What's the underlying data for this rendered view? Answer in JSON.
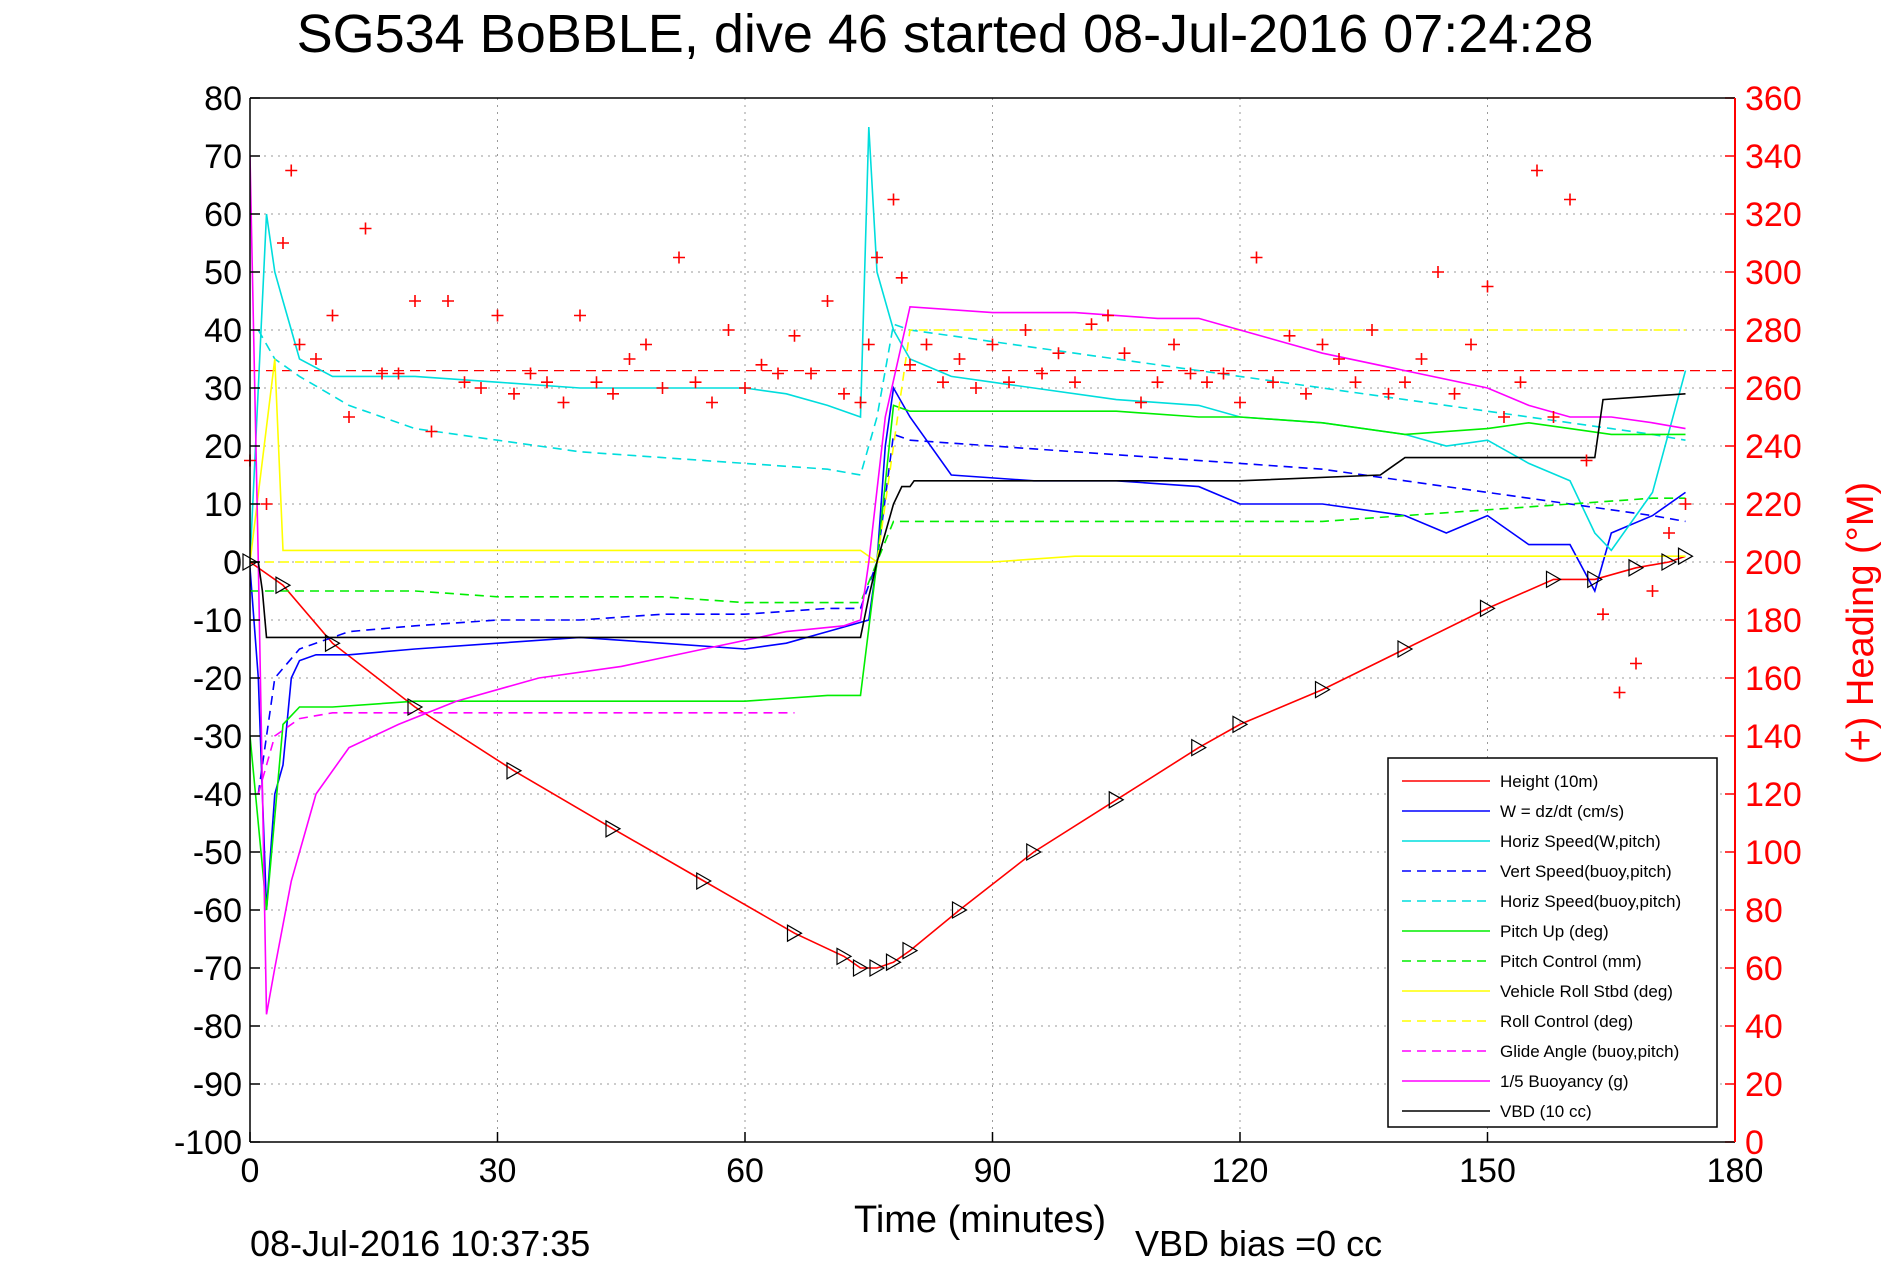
{
  "title": "SG534 BoBBLE, dive 46 started 08-Jul-2016 07:24:28",
  "footer": {
    "timestamp": "08-Jul-2016 10:37:35",
    "vbd_bias": "VBD bias =0 cc"
  },
  "chart_data": {
    "type": "line",
    "title": "SG534 BoBBLE, dive 46 started 08-Jul-2016 07:24:28",
    "xlabel": "Time (minutes)",
    "ylabel": "",
    "y2label": "(+) Heading (°M)",
    "xlim": [
      0,
      180
    ],
    "ylim": [
      -100,
      80
    ],
    "y2lim": [
      0,
      360
    ],
    "xticks": [
      "0",
      "30",
      "60",
      "90",
      "120",
      "150",
      "180"
    ],
    "yticks": [
      "80",
      "70",
      "60",
      "50",
      "40",
      "30",
      "20",
      "10",
      "0",
      "-10",
      "-20",
      "-30",
      "-40",
      "-50",
      "-60",
      "-70",
      "-80",
      "-90",
      "-100"
    ],
    "y2ticks": [
      "360",
      "340",
      "320",
      "300",
      "280",
      "260",
      "240",
      "220",
      "200",
      "180",
      "160",
      "140",
      "120",
      "100",
      "80",
      "60",
      "40",
      "20",
      "0"
    ],
    "grid": true,
    "legend_position": "bottom-right",
    "mean_heading_line": 266,
    "series": [
      {
        "name": "Height (10m)",
        "color": "#ff0000",
        "dash": "solid",
        "x": [
          0,
          4,
          10,
          20,
          32,
          44,
          55,
          66,
          72,
          74,
          76,
          78,
          80,
          86,
          95,
          105,
          115,
          120,
          130,
          140,
          150,
          158,
          163,
          168,
          172,
          174
        ],
        "y": [
          0,
          -4,
          -14,
          -25,
          -36,
          -46,
          -55,
          -64,
          -68,
          -70,
          -70,
          -69,
          -67,
          -60,
          -50,
          -41,
          -32,
          -28,
          -22,
          -15,
          -8,
          -3,
          -3,
          -1,
          0,
          1
        ]
      },
      {
        "name": "W = dz/dt (cm/s)",
        "color": "#0000ff",
        "dash": "solid",
        "x": [
          0,
          1,
          2,
          3,
          4,
          5,
          6,
          8,
          12,
          20,
          30,
          40,
          50,
          60,
          65,
          70,
          75,
          76,
          77,
          78,
          80,
          85,
          95,
          105,
          115,
          120,
          130,
          140,
          145,
          150,
          155,
          160,
          163,
          165,
          170,
          174
        ],
        "y": [
          -1,
          -20,
          -60,
          -40,
          -35,
          -20,
          -17,
          -16,
          -16,
          -15,
          -14,
          -13,
          -14,
          -15,
          -14,
          -12,
          -10,
          0,
          20,
          30,
          25,
          15,
          14,
          14,
          13,
          10,
          10,
          8,
          5,
          8,
          3,
          3,
          -5,
          5,
          8,
          12
        ]
      },
      {
        "name": "Horiz Speed(W,pitch)",
        "color": "#00dddd",
        "dash": "solid",
        "x": [
          0,
          1,
          2,
          3,
          4,
          5,
          6,
          10,
          20,
          30,
          40,
          50,
          60,
          65,
          70,
          74,
          75,
          76,
          78,
          80,
          85,
          95,
          105,
          115,
          120,
          130,
          140,
          145,
          150,
          155,
          160,
          163,
          165,
          170,
          174
        ],
        "y": [
          0,
          30,
          60,
          50,
          45,
          40,
          35,
          32,
          32,
          31,
          30,
          30,
          30,
          29,
          27,
          25,
          75,
          50,
          40,
          35,
          32,
          30,
          28,
          27,
          25,
          24,
          22,
          20,
          21,
          17,
          14,
          5,
          2,
          12,
          33
        ]
      },
      {
        "name": "Vert Speed(buoy,pitch)",
        "color": "#0000ff",
        "dash": "dashed",
        "x": [
          1,
          3,
          6,
          12,
          20,
          30,
          40,
          50,
          60,
          70,
          74,
          76,
          78,
          80,
          90,
          100,
          110,
          120,
          130,
          140,
          150,
          155,
          160,
          165,
          170,
          174
        ],
        "y": [
          -40,
          -20,
          -15,
          -12,
          -11,
          -10,
          -10,
          -9,
          -9,
          -8,
          -8,
          0,
          22,
          21,
          20,
          19,
          18,
          17,
          16,
          14,
          12,
          11,
          10,
          9,
          8,
          7
        ]
      },
      {
        "name": "Horiz Speed(buoy,pitch)",
        "color": "#00dddd",
        "dash": "dashed",
        "x": [
          1,
          3,
          6,
          12,
          20,
          30,
          40,
          50,
          60,
          70,
          74,
          76,
          78,
          80,
          90,
          100,
          110,
          120,
          130,
          140,
          150,
          155,
          160,
          165,
          170,
          174
        ],
        "y": [
          40,
          35,
          32,
          27,
          23,
          21,
          19,
          18,
          17,
          16,
          15,
          25,
          41,
          40,
          38,
          36,
          34,
          32,
          30,
          28,
          26,
          25,
          24,
          23,
          22,
          21
        ]
      },
      {
        "name": "Pitch Up (deg)",
        "color": "#00ee00",
        "dash": "solid",
        "x": [
          0,
          2,
          4,
          6,
          10,
          20,
          30,
          40,
          50,
          60,
          70,
          74,
          76,
          78,
          80,
          85,
          95,
          105,
          115,
          120,
          130,
          140,
          150,
          155,
          160,
          165,
          170,
          174
        ],
        "y": [
          -30,
          -60,
          -28,
          -25,
          -25,
          -24,
          -24,
          -24,
          -24,
          -24,
          -23,
          -23,
          0,
          27,
          26,
          26,
          26,
          26,
          25,
          25,
          24,
          22,
          23,
          24,
          23,
          22,
          22,
          22
        ]
      },
      {
        "name": "Pitch Control (mm)",
        "color": "#00ee00",
        "dash": "dashed",
        "x": [
          0,
          2,
          4,
          10,
          20,
          30,
          40,
          50,
          60,
          70,
          74,
          76,
          78,
          80,
          90,
          100,
          110,
          120,
          130,
          140,
          150,
          160,
          170,
          174
        ],
        "y": [
          -5,
          -5,
          -5,
          -5,
          -5,
          -6,
          -6,
          -6,
          -7,
          -7,
          -7,
          0,
          7,
          7,
          7,
          7,
          7,
          7,
          7,
          8,
          9,
          10,
          11,
          11
        ]
      },
      {
        "name": "Vehicle Roll Stbd (deg)",
        "color": "#ffff00",
        "dash": "solid",
        "x": [
          0,
          3,
          4,
          6,
          8,
          12,
          20,
          30,
          40,
          50,
          60,
          70,
          74,
          76,
          80,
          90,
          100,
          110,
          120,
          130,
          140,
          150,
          160,
          165,
          170,
          174
        ],
        "y": [
          0,
          35,
          2,
          2,
          2,
          2,
          2,
          2,
          2,
          2,
          2,
          2,
          2,
          0,
          0,
          0,
          1,
          1,
          1,
          1,
          1,
          1,
          1,
          1,
          1,
          1
        ]
      },
      {
        "name": "Roll Control (deg)",
        "color": "#ffff00",
        "dash": "dashed",
        "x": [
          0,
          10,
          20,
          30,
          40,
          50,
          60,
          70,
          74,
          76,
          80,
          90,
          100,
          110,
          120,
          130,
          140,
          150,
          160,
          170,
          174
        ],
        "y": [
          0,
          0,
          0,
          0,
          0,
          0,
          0,
          0,
          0,
          0,
          40,
          40,
          40,
          40,
          40,
          40,
          40,
          40,
          40,
          40,
          40
        ]
      },
      {
        "name": "Glide Angle (buoy,pitch)",
        "color": "#ff00ff",
        "dash": "dashed",
        "x": [
          1,
          3,
          6,
          10,
          20,
          30,
          40,
          50,
          60,
          66
        ],
        "y": [
          -40,
          -30,
          -27,
          -26,
          -26,
          -26,
          -26,
          -26,
          -26,
          -26
        ]
      },
      {
        "name": "1/5 Buoyancy (g)",
        "color": "#ff00ff",
        "dash": "solid",
        "x": [
          0,
          1,
          2,
          3,
          5,
          8,
          12,
          18,
          25,
          35,
          45,
          55,
          65,
          72,
          74,
          75,
          77,
          80,
          90,
          100,
          110,
          115,
          120,
          125,
          130,
          140,
          150,
          155,
          160,
          165,
          170,
          174
        ],
        "y": [
          70,
          0,
          -78,
          -70,
          -55,
          -40,
          -32,
          -28,
          -24,
          -20,
          -18,
          -15,
          -12,
          -11,
          -10,
          0,
          25,
          44,
          43,
          43,
          42,
          42,
          40,
          38,
          36,
          33,
          30,
          27,
          25,
          25,
          24,
          23
        ]
      },
      {
        "name": "VBD (10 cc)",
        "color": "#000000",
        "dash": "solid",
        "x": [
          0,
          1,
          1.5,
          2,
          74,
          75,
          76,
          77,
          78,
          79,
          80,
          80.5,
          120,
          137,
          138,
          140,
          158,
          163,
          164,
          174
        ],
        "y": [
          0,
          0,
          -5,
          -13,
          -13,
          -6,
          0,
          5,
          10,
          13,
          13,
          14,
          14,
          15,
          16,
          18,
          18,
          18,
          28,
          29
        ]
      },
      {
        "name": "(+) Heading",
        "color": "#ff0000",
        "axis": "right",
        "marker": "+",
        "x": [
          0,
          2,
          4,
          5,
          6,
          8,
          10,
          12,
          14,
          16,
          18,
          20,
          22,
          24,
          26,
          28,
          30,
          32,
          34,
          36,
          38,
          40,
          42,
          44,
          46,
          48,
          50,
          52,
          54,
          56,
          58,
          60,
          62,
          64,
          66,
          68,
          70,
          72,
          74,
          75,
          76,
          78,
          79,
          80,
          82,
          84,
          86,
          88,
          90,
          92,
          94,
          96,
          98,
          100,
          102,
          104,
          106,
          108,
          110,
          112,
          114,
          116,
          118,
          120,
          122,
          124,
          126,
          128,
          130,
          132,
          134,
          136,
          138,
          140,
          142,
          144,
          146,
          148,
          150,
          152,
          154,
          156,
          158,
          160,
          162,
          164,
          166,
          168,
          170,
          172,
          174
        ],
        "y": [
          235,
          220,
          310,
          335,
          275,
          270,
          285,
          250,
          315,
          265,
          265,
          290,
          245,
          290,
          262,
          260,
          285,
          258,
          265,
          262,
          255,
          285,
          262,
          258,
          270,
          275,
          260,
          305,
          262,
          255,
          280,
          260,
          268,
          265,
          278,
          265,
          290,
          258,
          255,
          275,
          305,
          325,
          298,
          268,
          275,
          262,
          270,
          260,
          275,
          262,
          280,
          265,
          272,
          262,
          282,
          285,
          272,
          255,
          262,
          275,
          265,
          262,
          265,
          255,
          305,
          262,
          278,
          258,
          275,
          270,
          262,
          280,
          258,
          262,
          270,
          300,
          258,
          275,
          295,
          250,
          262,
          335,
          250,
          325,
          235,
          182,
          155,
          165,
          190,
          210,
          220
        ]
      }
    ]
  }
}
